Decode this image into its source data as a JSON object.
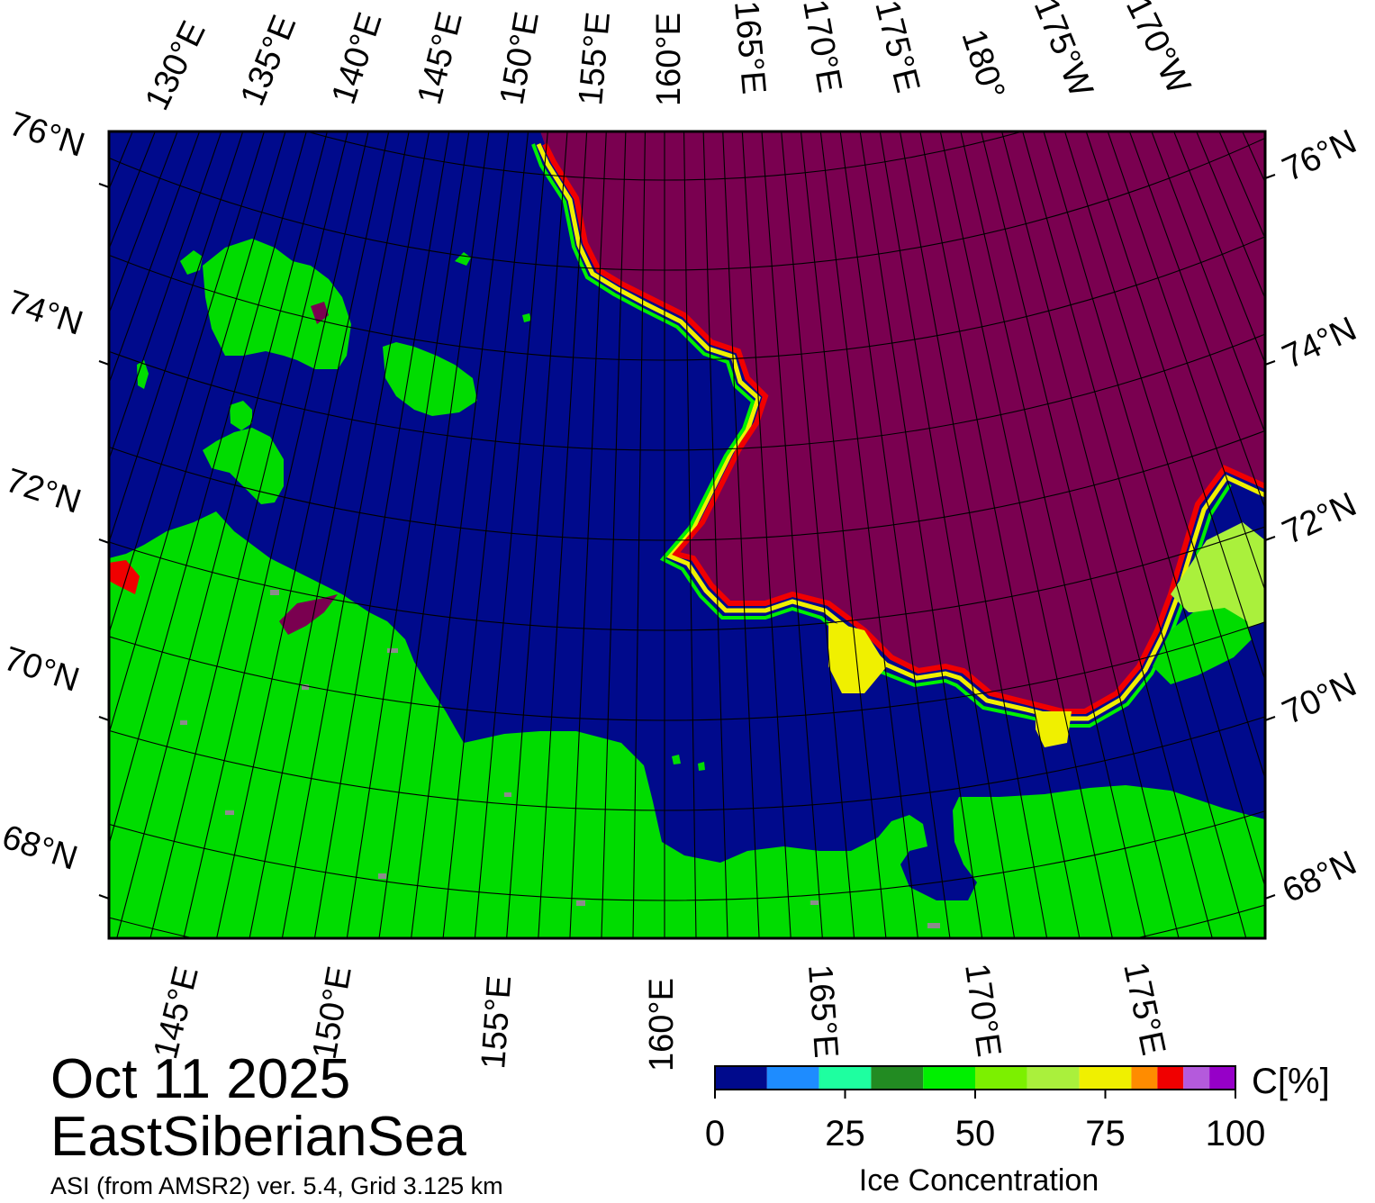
{
  "map": {
    "region": "EastSiberianSea",
    "date": "Oct 11 2025",
    "source": "ASI (from AMSR2) ver. 5.4,  Grid 3.125 km",
    "lat_labels_left": [
      "76°N",
      "74°N",
      "72°N",
      "70°N",
      "68°N"
    ],
    "lat_labels_right": [
      "76°N",
      "74°N",
      "72°N",
      "70°N",
      "68°N"
    ],
    "lon_labels_top": [
      "130°E",
      "135°E",
      "140°E",
      "145°E",
      "150°E",
      "155°E",
      "160°E",
      "165°E",
      "170°E",
      "175°E",
      "180°",
      "175°W",
      "170°W"
    ],
    "lon_labels_bottom": [
      "145°E",
      "150°E",
      "155°E",
      "160°E",
      "165°E",
      "170°E",
      "175°E"
    ],
    "colors": {
      "open_water": "#000a8c",
      "land": "#00dc00",
      "ice_high": "#7a0050",
      "land_ice_gray": "#8c8c8c",
      "frame": "#000000"
    }
  },
  "colorbar": {
    "title": "Ice Concentration",
    "unit": "C[%]",
    "tick_labels": [
      "0",
      "25",
      "50",
      "75",
      "100"
    ],
    "range": [
      0,
      100
    ],
    "bins": [
      {
        "from": 0,
        "to": 10,
        "color": "#000a8c"
      },
      {
        "from": 10,
        "to": 20,
        "color": "#1e8cff"
      },
      {
        "from": 20,
        "to": 30,
        "color": "#1effa0"
      },
      {
        "from": 30,
        "to": 40,
        "color": "#228b22"
      },
      {
        "from": 40,
        "to": 50,
        "color": "#00f000"
      },
      {
        "from": 50,
        "to": 60,
        "color": "#7cf000"
      },
      {
        "from": 60,
        "to": 70,
        "color": "#aaf03c"
      },
      {
        "from": 70,
        "to": 80,
        "color": "#f0f000"
      },
      {
        "from": 80,
        "to": 85,
        "color": "#ff8c00"
      },
      {
        "from": 85,
        "to": 90,
        "color": "#f00000"
      },
      {
        "from": 90,
        "to": 95,
        "color": "#b45adc"
      },
      {
        "from": 95,
        "to": 100,
        "color": "#9600c8"
      }
    ]
  }
}
